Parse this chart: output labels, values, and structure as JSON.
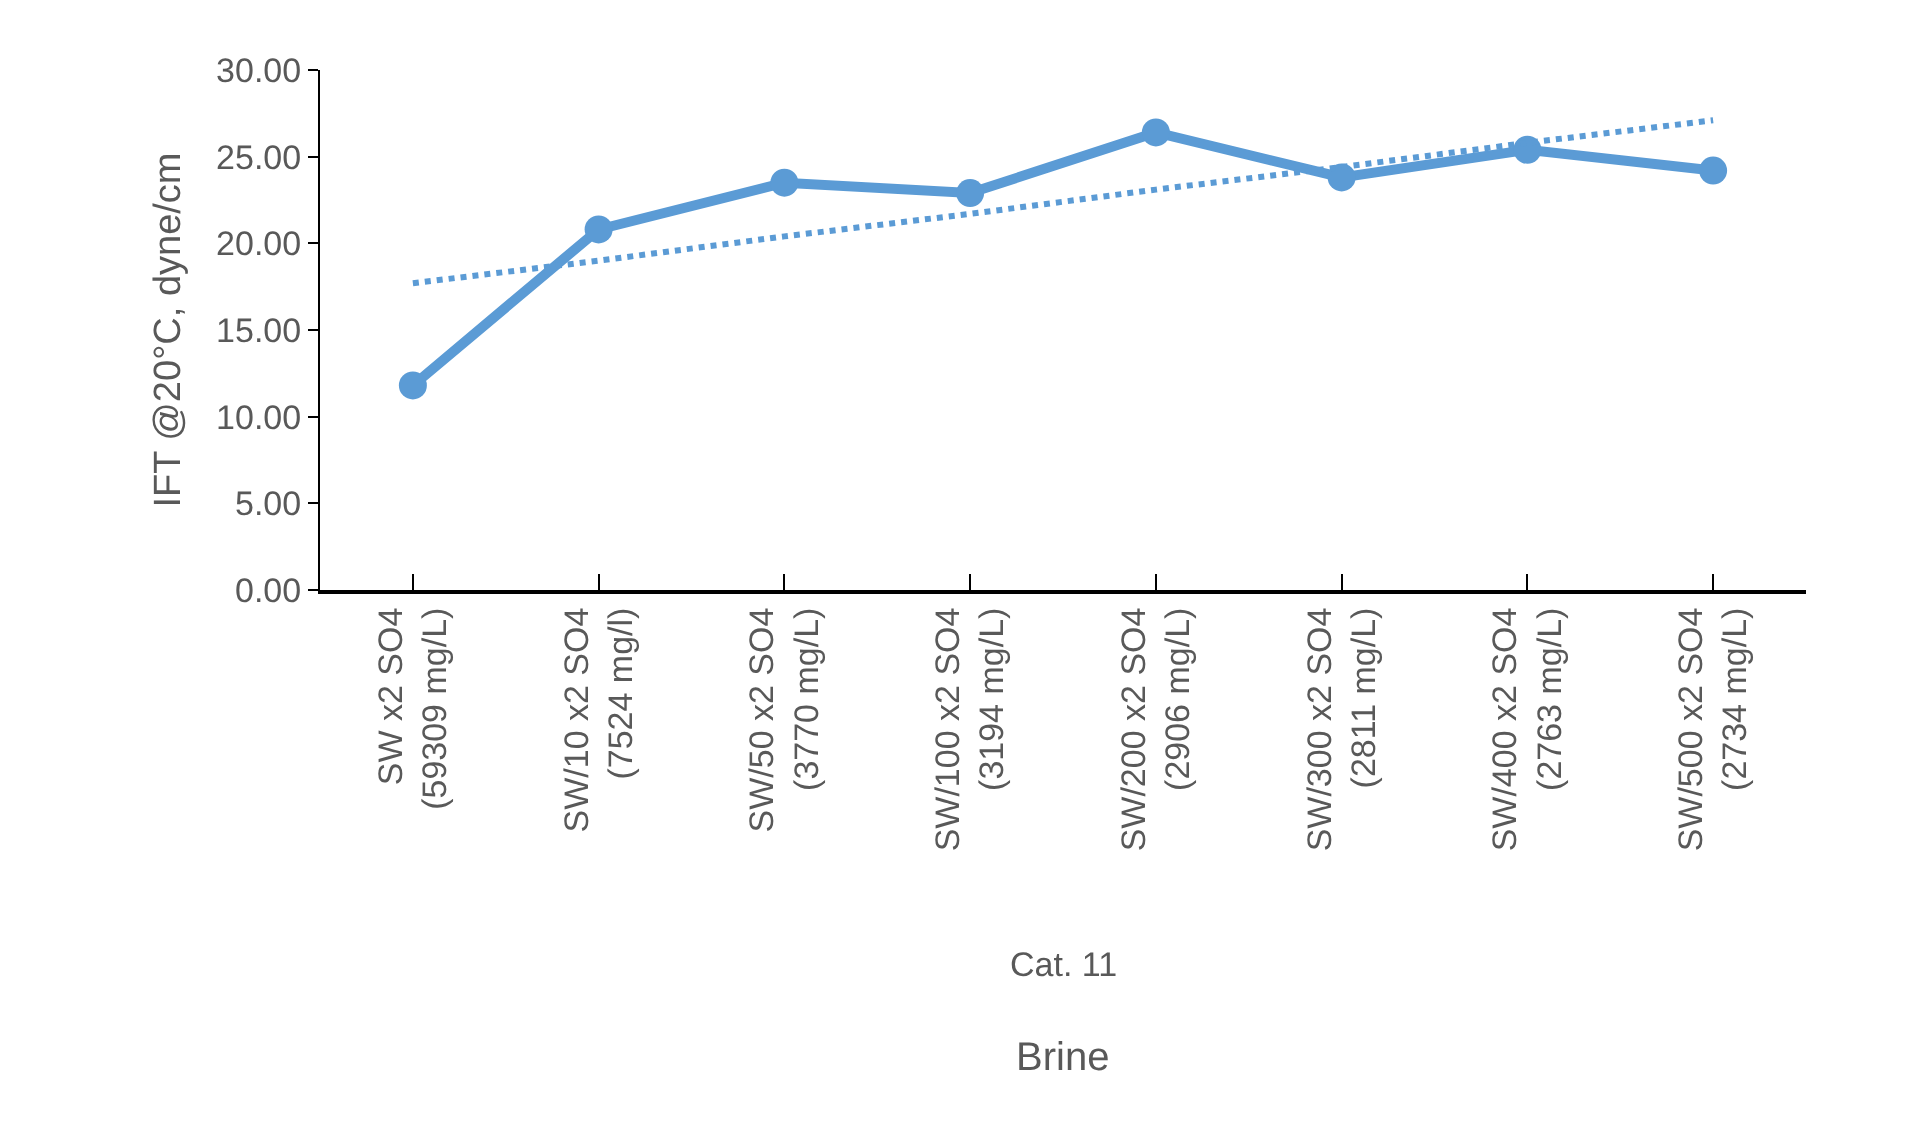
{
  "chart_data": {
    "type": "line",
    "ylabel": "IFT @20°C, dyne/cm",
    "xlabel": "Brine",
    "annotations": [
      "Cat. 11"
    ],
    "categories": [
      "SW x2 SO4\n(59309 mg/L)",
      "SW/10 x2 SO4\n(7524 mg/l)",
      "SW/50 x2 SO4\n(3770 mg/L)",
      "SW/100 x2 SO4\n(3194 mg/L)",
      "SW/200 x2 SO4\n(2906 mg/L)",
      "SW/300 x2 SO4\n(2811 mg/L)",
      "SW/400 x2 SO4\n(2763 mg/L)",
      "SW/500 x2 SO4\n(2734 mg/L)"
    ],
    "series": [
      {
        "color": "#5b9bd5",
        "values": [
          11.8,
          20.8,
          23.5,
          22.9,
          26.4,
          23.8,
          25.4,
          24.2
        ],
        "marker": "circle",
        "line_style": "solid"
      },
      {
        "color": "#5b9bd5",
        "values": [
          17.7,
          19.0,
          20.4,
          21.7,
          23.1,
          24.4,
          25.8,
          27.1
        ],
        "marker": "none",
        "line_style": "dotted"
      }
    ],
    "ylim": [
      0,
      30
    ],
    "yticks": [
      {
        "value": 0,
        "label": "0.00"
      },
      {
        "value": 5,
        "label": "5.00"
      },
      {
        "value": 10,
        "label": "10.00"
      },
      {
        "value": 15,
        "label": "15.00"
      },
      {
        "value": 20,
        "label": "20.00"
      },
      {
        "value": 25,
        "label": "25.00"
      },
      {
        "value": 30,
        "label": "30.00"
      }
    ]
  }
}
